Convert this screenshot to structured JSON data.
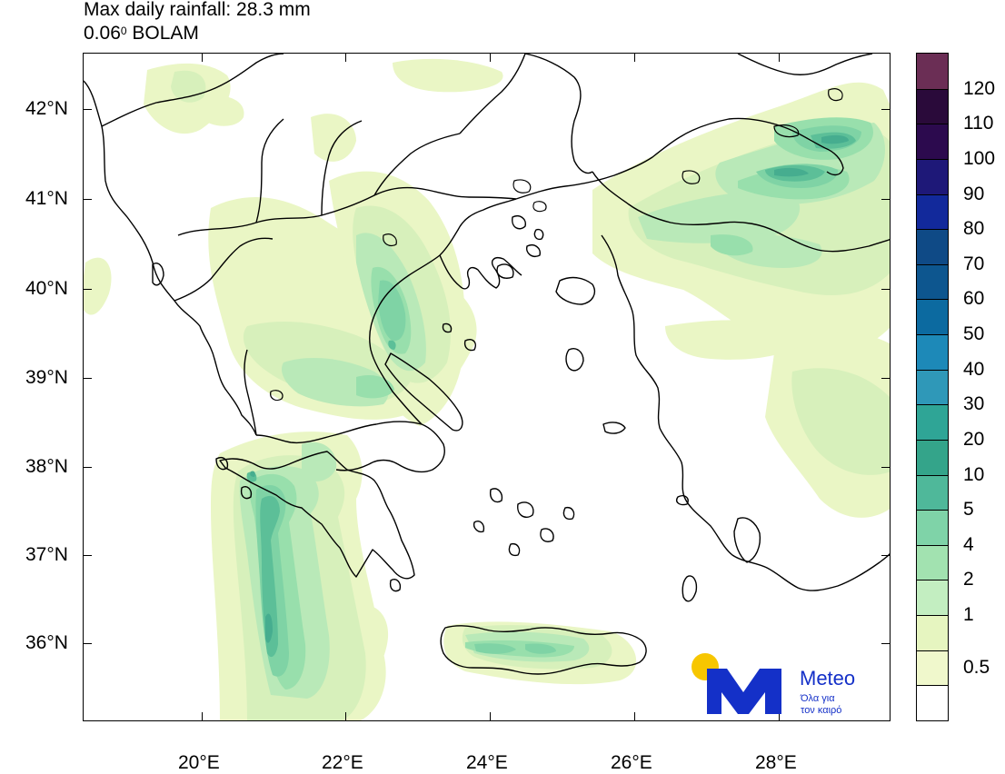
{
  "title": {
    "line1": "Max daily rainfall: 28.3 mm",
    "line2_value": "0.06",
    "line2_sup": "0",
    "line2_rest": " BOLAM"
  },
  "axes": {
    "lat_labels": [
      "42°N",
      "41°N",
      "40°N",
      "39°N",
      "38°N",
      "37°N",
      "36°N"
    ],
    "lon_labels": [
      "20°E",
      "22°E",
      "24°E",
      "26°E",
      "28°E"
    ]
  },
  "colorbar": {
    "labels": [
      "120",
      "110",
      "100",
      "90",
      "80",
      "70",
      "60",
      "50",
      "40",
      "30",
      "20",
      "10",
      "5",
      "4",
      "2",
      "1",
      "0.5"
    ],
    "colors": [
      "#6b2e55",
      "#2a0a3a",
      "#2c0a4e",
      "#1e1878",
      "#12299b",
      "#0f4a86",
      "#0d568f",
      "#0c6aa0",
      "#1d89b8",
      "#2f98b8",
      "#2fa596",
      "#34a48a",
      "#4fb89a",
      "#7fd3a8",
      "#a2e2b0",
      "#c3eec1",
      "#e6f5c0",
      "#f0f8cc",
      "#ffffff"
    ]
  },
  "logo": {
    "name": "Meteo",
    "tagline_line1": "Όλα για",
    "tagline_line2": "τον καιρό"
  },
  "map": {
    "colors": {
      "c05": "#eaf6c5",
      "c1": "#d7f0bb",
      "c2": "#b9e9b8",
      "c4": "#98dfac",
      "c5": "#7fd3a5",
      "c10": "#5cbf98",
      "c20": "#46ad8f",
      "c30": "#36a087"
    }
  }
}
